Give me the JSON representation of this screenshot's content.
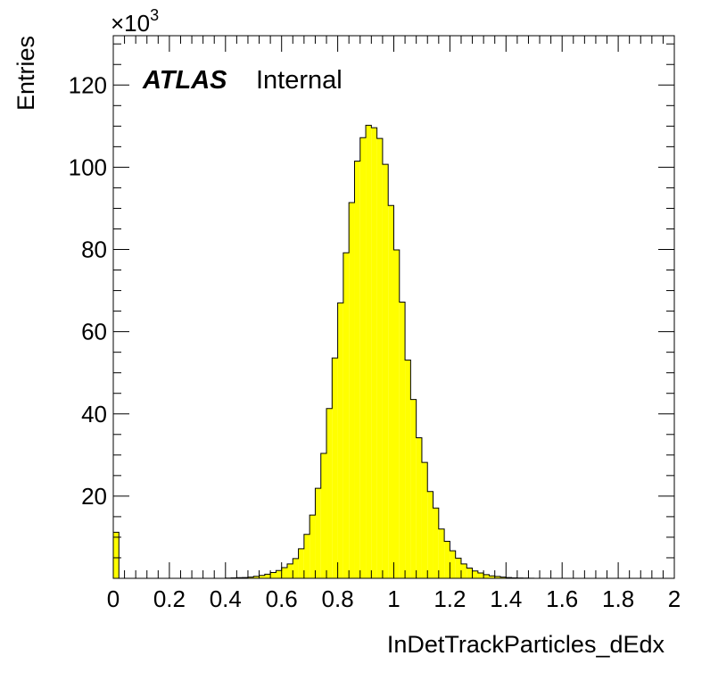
{
  "chart_data": {
    "type": "bar",
    "histogram": true,
    "xlabel": "InDetTrackParticles_dEdx",
    "ylabel": "Entries",
    "y_multiplier": "×10",
    "y_multiplier_exp": "3",
    "annotation_bold": "ATLAS",
    "annotation_text": "Internal",
    "xlim": [
      0,
      2
    ],
    "ylim": [
      0,
      132
    ],
    "bin_width": 0.02,
    "x_ticks": [
      "0",
      "0.2",
      "0.4",
      "0.6",
      "0.8",
      "1",
      "1.2",
      "1.4",
      "1.6",
      "1.8",
      "2"
    ],
    "y_ticks": [
      "20",
      "40",
      "60",
      "80",
      "100",
      "120"
    ],
    "fill_color": "#ffff00",
    "line_color": "#000000",
    "values": [
      11.2,
      0,
      0,
      0,
      0,
      0,
      0,
      0,
      0,
      0,
      0,
      0,
      0,
      0,
      0,
      0,
      0,
      0,
      0,
      0,
      0.05,
      0.1,
      0.15,
      0.2,
      0.3,
      0.5,
      0.7,
      1.0,
      1.4,
      1.9,
      2.6,
      3.5,
      4.8,
      7.2,
      10.7,
      15.4,
      21.9,
      30.4,
      41.3,
      53.6,
      67.0,
      79.2,
      91.4,
      101.5,
      107.2,
      110.2,
      109.6,
      107.0,
      100.7,
      90.7,
      79.9,
      67.2,
      53.1,
      43.5,
      34.2,
      28.2,
      21.1,
      17.1,
      12.0,
      9.0,
      6.7,
      4.9,
      3.5,
      2.5,
      1.8,
      1.3,
      0.9,
      0.6,
      0.45,
      0.3,
      0.2,
      0.12,
      0.08,
      0.05,
      0.03,
      0,
      0,
      0,
      0,
      0,
      0,
      0,
      0,
      0,
      0,
      0,
      0,
      0,
      0,
      0,
      0,
      0,
      0,
      0,
      0,
      0,
      0,
      0,
      0,
      0
    ]
  }
}
